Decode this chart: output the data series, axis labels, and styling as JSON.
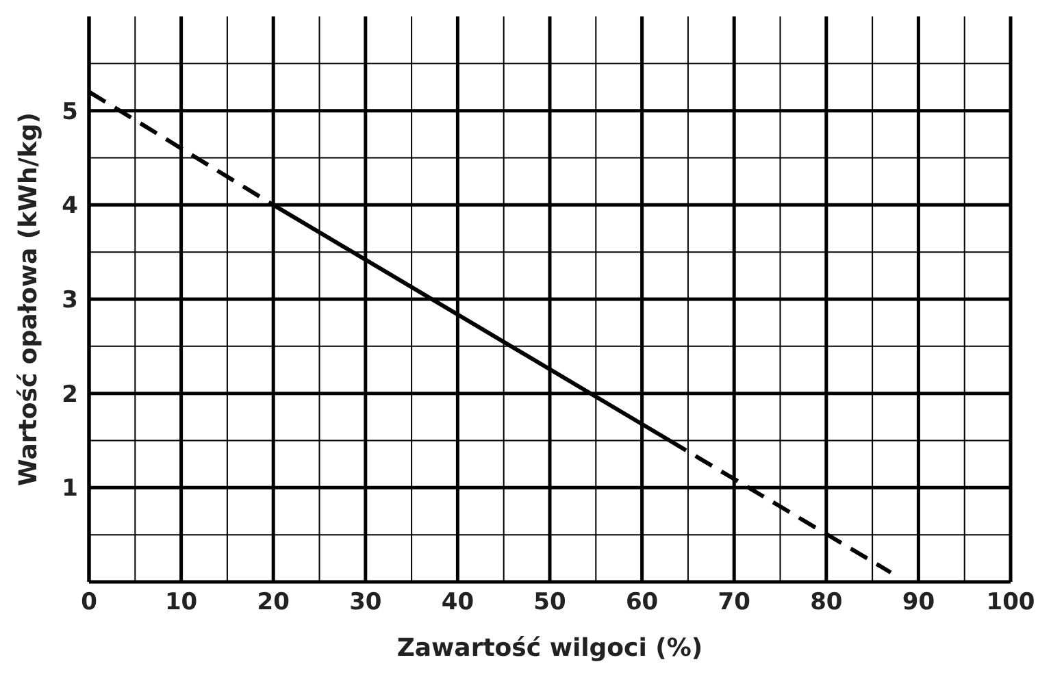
{
  "chart_data": {
    "type": "line",
    "xlabel": "Zawartość wilgoci (%)",
    "ylabel": "Wartość opałowa (kWh/kg)",
    "xlim": [
      0,
      100
    ],
    "ylim": [
      0,
      6
    ],
    "xticks": [
      0,
      {
        "value": 5,
        "label": null
      },
      10,
      {
        "value": 15,
        "label": null
      },
      20,
      {
        "value": 25,
        "label": null
      },
      30,
      {
        "value": 35,
        "label": null
      },
      40,
      {
        "value": 45,
        "label": null
      },
      50,
      {
        "value": 55,
        "label": null
      },
      60,
      {
        "value": 65,
        "label": null
      },
      70,
      {
        "value": 75,
        "label": null
      },
      80,
      {
        "value": 85,
        "label": null
      },
      90,
      {
        "value": 95,
        "label": null
      },
      100
    ],
    "yticks": [
      {
        "value": 0.5,
        "label": null
      },
      1,
      {
        "value": 1.5,
        "label": null
      },
      2,
      {
        "value": 2.5,
        "label": null
      },
      3,
      {
        "value": 3.5,
        "label": null
      },
      4,
      {
        "value": 4.5,
        "label": null
      },
      5,
      {
        "value": 5.5,
        "label": null
      }
    ],
    "grid": true,
    "marker": "none",
    "series": [
      {
        "color": "#000000",
        "line_style": "dashed",
        "x": [
          0,
          20
        ],
        "values": [
          5.2,
          4.0
        ]
      },
      {
        "color": "#000000",
        "line_style": "solid",
        "x": [
          20,
          63
        ],
        "values": [
          4.0,
          1.5
        ]
      },
      {
        "color": "#000000",
        "line_style": "dashed",
        "x": [
          63,
          87
        ],
        "values": [
          1.5,
          0.1
        ]
      }
    ]
  }
}
